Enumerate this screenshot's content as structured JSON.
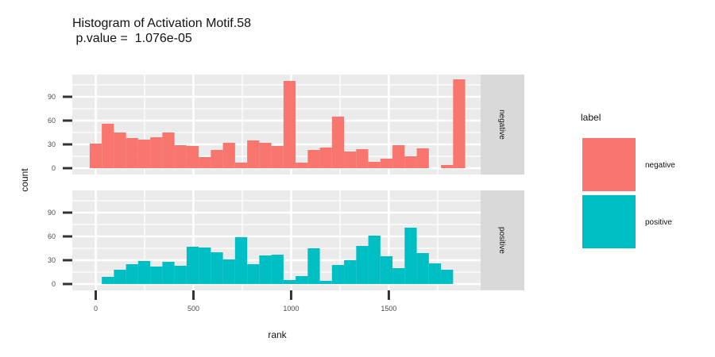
{
  "chart_data": {
    "type": "bar",
    "subtype": "histogram",
    "title": "Histogram of Activation Motif.58",
    "subtitle": " p.value =  1.076e-05",
    "xlabel": "rank",
    "ylabel": "count",
    "xlim": [
      -120,
      1970
    ],
    "ylim": [
      -8,
      118
    ],
    "xticks": [
      0,
      500,
      1000,
      1500
    ],
    "yticks": [
      0,
      30,
      60,
      90
    ],
    "bin_width": 62,
    "grid": true,
    "legend": {
      "title": "label",
      "placement": "right",
      "entries": [
        "negative",
        "positive"
      ]
    },
    "colors": {
      "negative": "#F8766D",
      "positive": "#00BFC4",
      "panel": "#EBEBEB",
      "strip": "#D9D9D9"
    },
    "panels": [
      {
        "strip": "negative",
        "fill": "#F8766D",
        "bin_starts": [
          -31,
          31,
          93,
          155,
          217,
          279,
          341,
          403,
          465,
          527,
          589,
          651,
          713,
          775,
          837,
          899,
          961,
          1023,
          1085,
          1147,
          1209,
          1271,
          1333,
          1395,
          1457,
          1519,
          1581,
          1643,
          1705,
          1767,
          1829
        ],
        "counts": [
          31,
          56,
          45,
          38,
          36,
          39,
          45,
          29,
          28,
          14,
          23,
          32,
          7,
          35,
          32,
          28,
          110,
          7,
          23,
          26,
          65,
          21,
          24,
          8,
          12,
          29,
          15,
          25,
          0,
          4,
          112
        ]
      },
      {
        "strip": "positive",
        "fill": "#00BFC4",
        "bin_starts": [
          31,
          93,
          155,
          217,
          279,
          341,
          403,
          465,
          527,
          589,
          651,
          713,
          775,
          837,
          899,
          961,
          1023,
          1085,
          1147,
          1209,
          1271,
          1333,
          1395,
          1457,
          1519,
          1581,
          1643,
          1705,
          1767,
          1829
        ],
        "counts": [
          9,
          18,
          25,
          29,
          22,
          28,
          23,
          47,
          46,
          40,
          31,
          59,
          25,
          36,
          37,
          5,
          10,
          45,
          4,
          24,
          30,
          48,
          61,
          35,
          20,
          71,
          39,
          26,
          18,
          0
        ]
      }
    ]
  }
}
